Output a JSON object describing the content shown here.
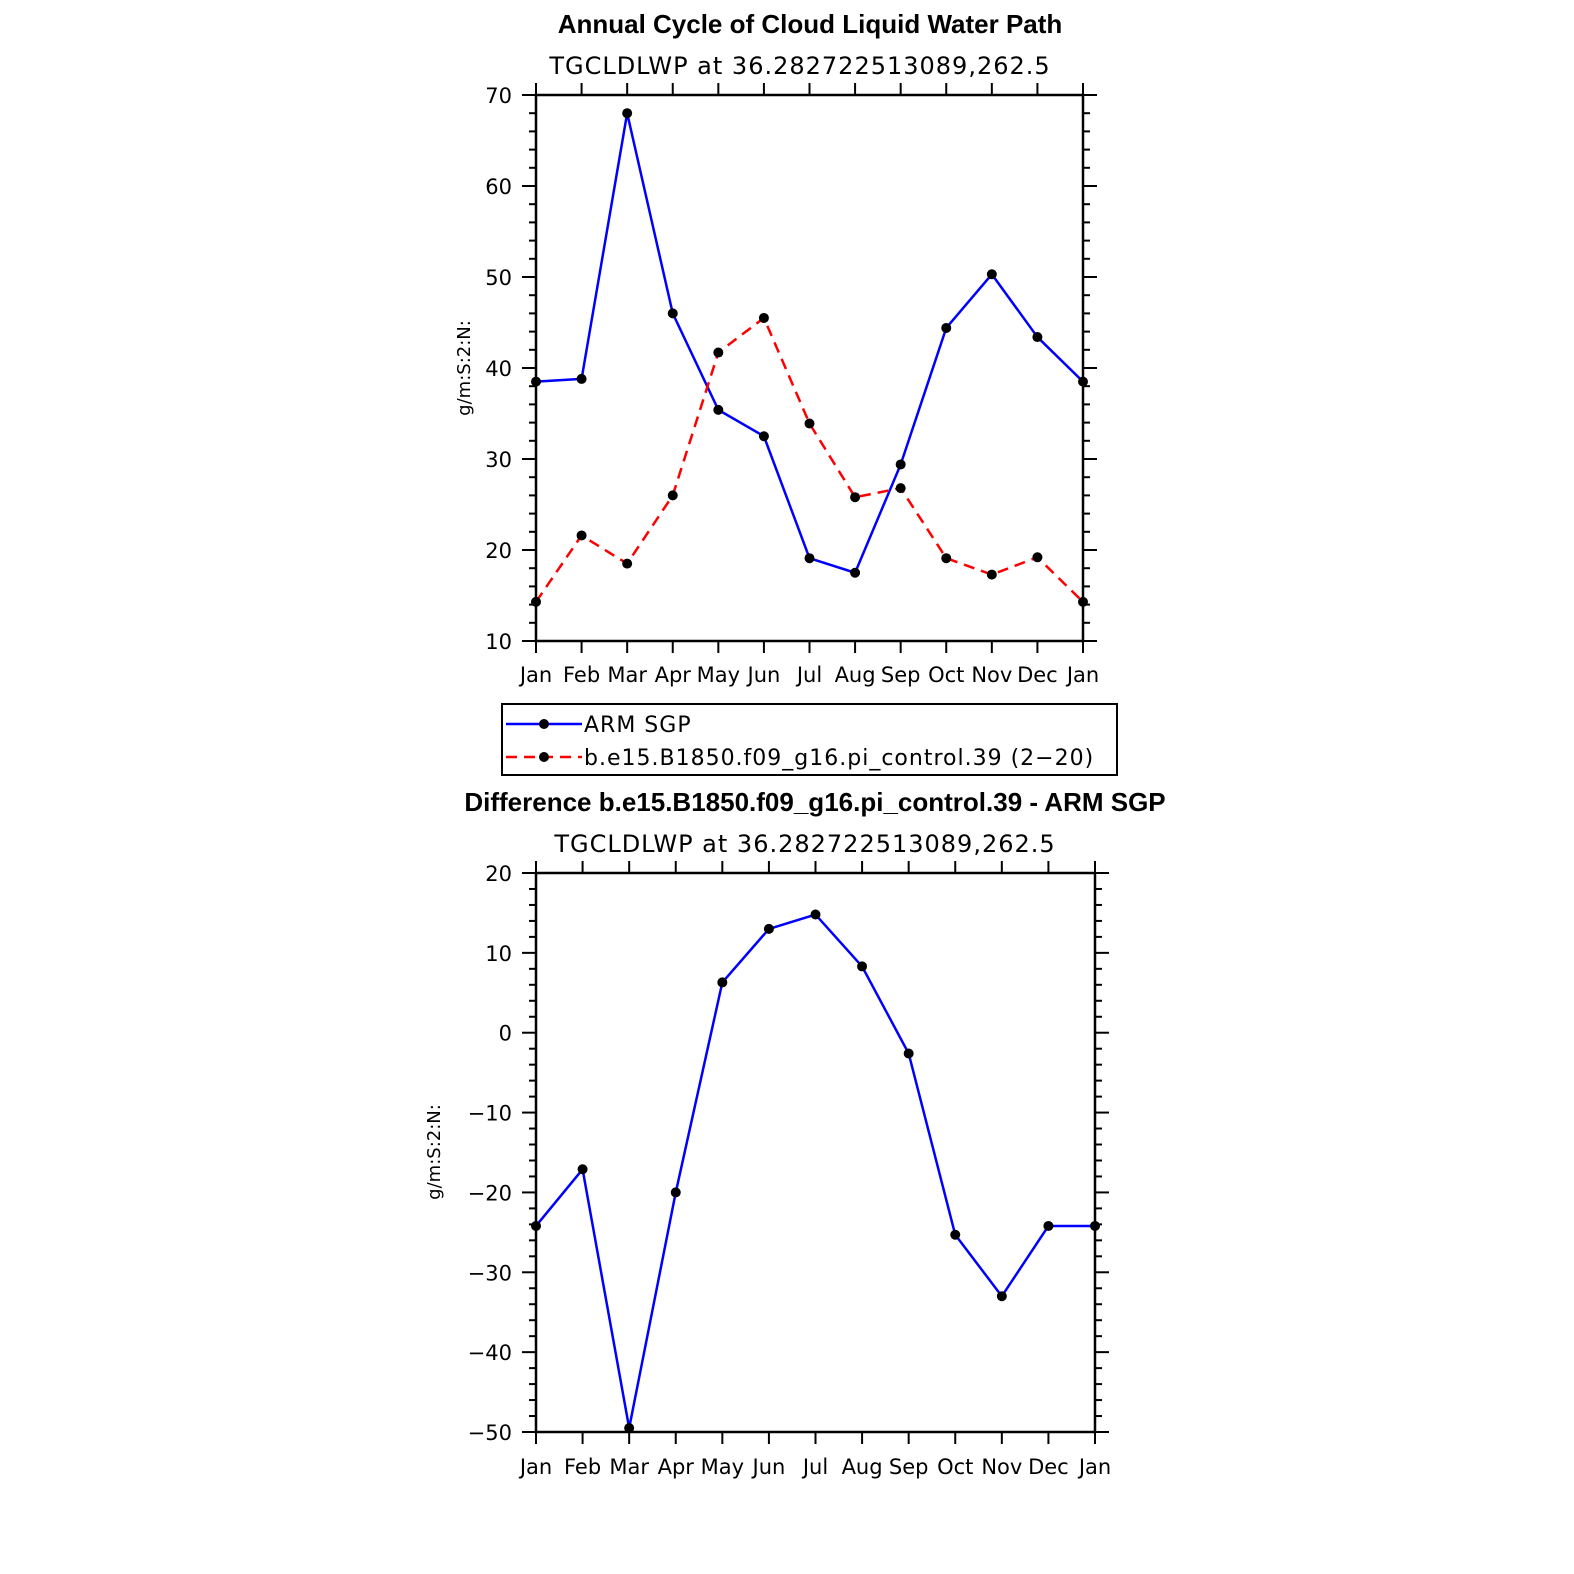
{
  "chart_data": [
    {
      "type": "line",
      "title": "Annual Cycle of Cloud Liquid Water Path",
      "subtitle": "TGCLDLWP  at  36.282722513089,262.5",
      "ylabel": "g/m:S:2:N:",
      "xlabel": "",
      "categories": [
        "Jan",
        "Feb",
        "Mar",
        "Apr",
        "May",
        "Jun",
        "Jul",
        "Aug",
        "Sep",
        "Oct",
        "Nov",
        "Dec",
        "Jan"
      ],
      "ylim": [
        10,
        70
      ],
      "yticks": [
        10,
        20,
        30,
        40,
        50,
        60,
        70
      ],
      "series": [
        {
          "name": "ARM  SGP",
          "color": "#0000ff",
          "dash": "solid",
          "values": [
            38.5,
            38.8,
            68.0,
            46.0,
            35.4,
            32.5,
            19.1,
            17.5,
            29.4,
            44.4,
            50.3,
            43.4,
            38.5
          ]
        },
        {
          "name": "b.e15.B1850.f09_g16.pi_control.39  (2−20)",
          "color": "#ff0000",
          "dash": "dashed",
          "values": [
            14.3,
            21.6,
            18.5,
            26.0,
            41.7,
            45.5,
            33.9,
            25.8,
            26.8,
            19.1,
            17.3,
            19.2,
            14.3
          ]
        }
      ],
      "legend": "bottom"
    },
    {
      "type": "line",
      "title": "Difference b.e15.B1850.f09_g16.pi_control.39 - ARM SGP",
      "subtitle": "TGCLDLWP  at  36.282722513089,262.5",
      "ylabel": "g/m:S:2:N:",
      "xlabel": "",
      "categories": [
        "Jan",
        "Feb",
        "Mar",
        "Apr",
        "May",
        "Jun",
        "Jul",
        "Aug",
        "Sep",
        "Oct",
        "Nov",
        "Dec",
        "Jan"
      ],
      "ylim": [
        -50,
        20
      ],
      "yticks": [
        -50,
        -40,
        -30,
        -20,
        -10,
        0,
        10,
        20
      ],
      "ytick_labels": [
        "−50",
        "−40",
        "−30",
        "−20",
        "−10",
        "0",
        "10",
        "20"
      ],
      "series": [
        {
          "name": "Difference",
          "color": "#0000ff",
          "dash": "solid",
          "values": [
            -24.2,
            -17.1,
            -49.5,
            -20.0,
            6.3,
            13.0,
            14.8,
            8.3,
            -2.6,
            -25.3,
            -33.0,
            -24.2,
            -24.2
          ]
        }
      ]
    }
  ]
}
